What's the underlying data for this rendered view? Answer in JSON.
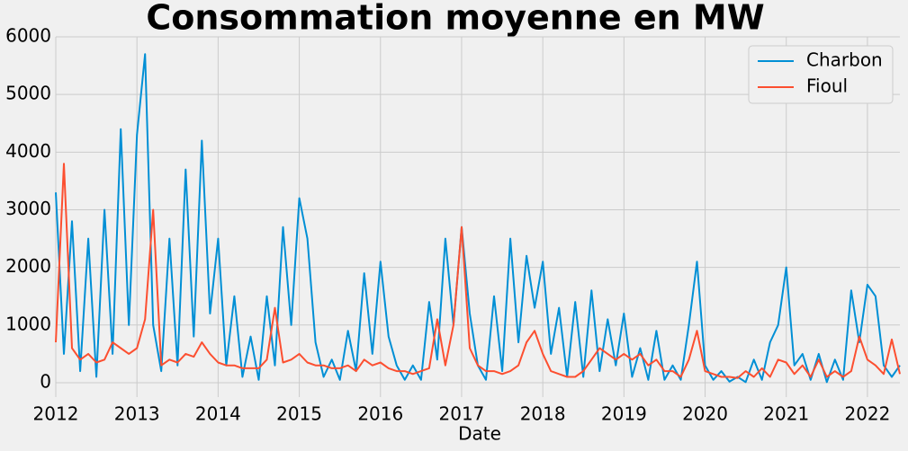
{
  "chart_data": {
    "type": "line",
    "title": "Consommation moyenne en MW",
    "xlabel": "Date",
    "x": [
      2012.0,
      2012.1,
      2012.2,
      2012.3,
      2012.4,
      2012.5,
      2012.6,
      2012.7,
      2012.8,
      2012.9,
      2013.0,
      2013.1,
      2013.2,
      2013.3,
      2013.4,
      2013.5,
      2013.6,
      2013.7,
      2013.8,
      2013.9,
      2014.0,
      2014.1,
      2014.2,
      2014.3,
      2014.4,
      2014.5,
      2014.6,
      2014.7,
      2014.8,
      2014.9,
      2015.0,
      2015.1,
      2015.2,
      2015.3,
      2015.4,
      2015.5,
      2015.6,
      2015.7,
      2015.8,
      2015.9,
      2016.0,
      2016.1,
      2016.2,
      2016.3,
      2016.4,
      2016.5,
      2016.6,
      2016.7,
      2016.8,
      2016.9,
      2017.0,
      2017.1,
      2017.2,
      2017.3,
      2017.4,
      2017.5,
      2017.6,
      2017.7,
      2017.8,
      2017.9,
      2018.0,
      2018.1,
      2018.2,
      2018.3,
      2018.4,
      2018.5,
      2018.6,
      2018.7,
      2018.8,
      2018.9,
      2019.0,
      2019.1,
      2019.2,
      2019.3,
      2019.4,
      2019.5,
      2019.6,
      2019.7,
      2019.8,
      2019.9,
      2020.0,
      2020.1,
      2020.2,
      2020.3,
      2020.4,
      2020.5,
      2020.6,
      2020.7,
      2020.8,
      2020.9,
      2021.0,
      2021.1,
      2021.2,
      2021.3,
      2021.4,
      2021.5,
      2021.6,
      2021.7,
      2021.8,
      2021.9,
      2022.0,
      2022.1,
      2022.2,
      2022.3,
      2022.4
    ],
    "series": [
      {
        "name": "Charbon",
        "color": "#008fd5",
        "values": [
          3300,
          500,
          2800,
          200,
          2500,
          100,
          3000,
          500,
          4400,
          1000,
          4300,
          5700,
          1000,
          200,
          2500,
          300,
          3700,
          800,
          4200,
          1200,
          2500,
          300,
          1500,
          100,
          800,
          50,
          1500,
          300,
          2700,
          1000,
          3200,
          2500,
          700,
          100,
          400,
          50,
          900,
          200,
          1900,
          500,
          2100,
          800,
          300,
          50,
          300,
          50,
          1400,
          400,
          2500,
          1000,
          2700,
          1200,
          300,
          50,
          1500,
          200,
          2500,
          700,
          2200,
          1300,
          2100,
          500,
          1300,
          100,
          1400,
          100,
          1600,
          200,
          1100,
          300,
          1200,
          100,
          600,
          50,
          900,
          50,
          300,
          50,
          1000,
          2100,
          300,
          50,
          200,
          20,
          100,
          10,
          400,
          50,
          700,
          1000,
          2000,
          300,
          500,
          50,
          500,
          10,
          400,
          50,
          1600,
          700,
          1700,
          1500,
          300,
          100,
          300
        ]
      },
      {
        "name": "Fioul",
        "color": "#fc4f30",
        "values": [
          700,
          3800,
          600,
          400,
          500,
          350,
          400,
          700,
          600,
          500,
          600,
          1100,
          3000,
          300,
          400,
          350,
          500,
          450,
          700,
          500,
          350,
          300,
          300,
          250,
          250,
          250,
          400,
          1300,
          350,
          400,
          500,
          350,
          300,
          300,
          250,
          250,
          300,
          200,
          400,
          300,
          350,
          250,
          200,
          200,
          150,
          200,
          250,
          1100,
          300,
          1000,
          2700,
          600,
          300,
          200,
          200,
          150,
          200,
          300,
          700,
          900,
          500,
          200,
          150,
          100,
          100,
          200,
          400,
          600,
          500,
          400,
          500,
          400,
          500,
          300,
          400,
          200,
          200,
          100,
          400,
          900,
          200,
          150,
          100,
          100,
          80,
          200,
          100,
          250,
          100,
          400,
          350,
          150,
          300,
          100,
          400,
          100,
          200,
          100,
          200,
          800,
          400,
          300,
          150,
          750,
          150
        ]
      }
    ],
    "xlim": [
      2012,
      2022.4
    ],
    "xticks": [
      2012,
      2013,
      2014,
      2015,
      2016,
      2017,
      2018,
      2019,
      2020,
      2021,
      2022
    ],
    "ylim": [
      -250,
      6000
    ],
    "yticks": [
      0,
      1000,
      2000,
      3000,
      4000,
      5000,
      6000
    ],
    "grid": true,
    "legend": "upper right"
  }
}
